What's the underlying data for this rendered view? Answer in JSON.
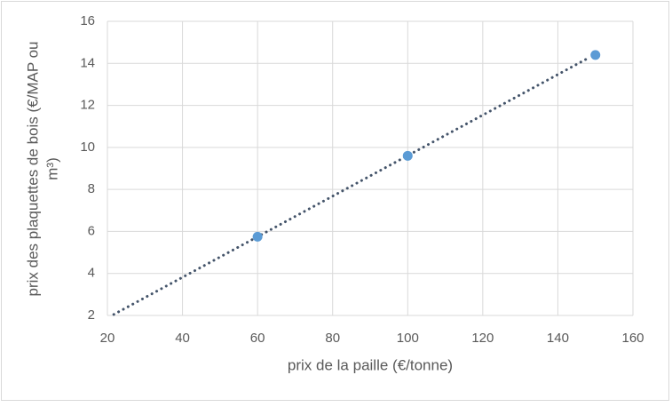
{
  "chart_data": {
    "type": "scatter",
    "xlabel": "prix de la paille (€/tonne)",
    "ylabel": [
      "prix des plaquettes de bois (€/MAP ou",
      "m³)"
    ],
    "series": [
      {
        "color": "#5b9bd5",
        "x": [
          60,
          100,
          150
        ],
        "values": [
          5.75,
          9.6,
          14.4
        ]
      }
    ],
    "trendline": {
      "color": "#44546a",
      "x": [
        21.7,
        148.6
      ],
      "values": [
        2.05,
        14.3
      ]
    },
    "xlim": [
      20,
      160
    ],
    "xticks": [
      20,
      40,
      60,
      80,
      100,
      120,
      140,
      160
    ],
    "ylim": [
      2,
      16
    ],
    "yticks": [
      2,
      4,
      6,
      8,
      10,
      12,
      14,
      16
    ],
    "grid": true
  }
}
